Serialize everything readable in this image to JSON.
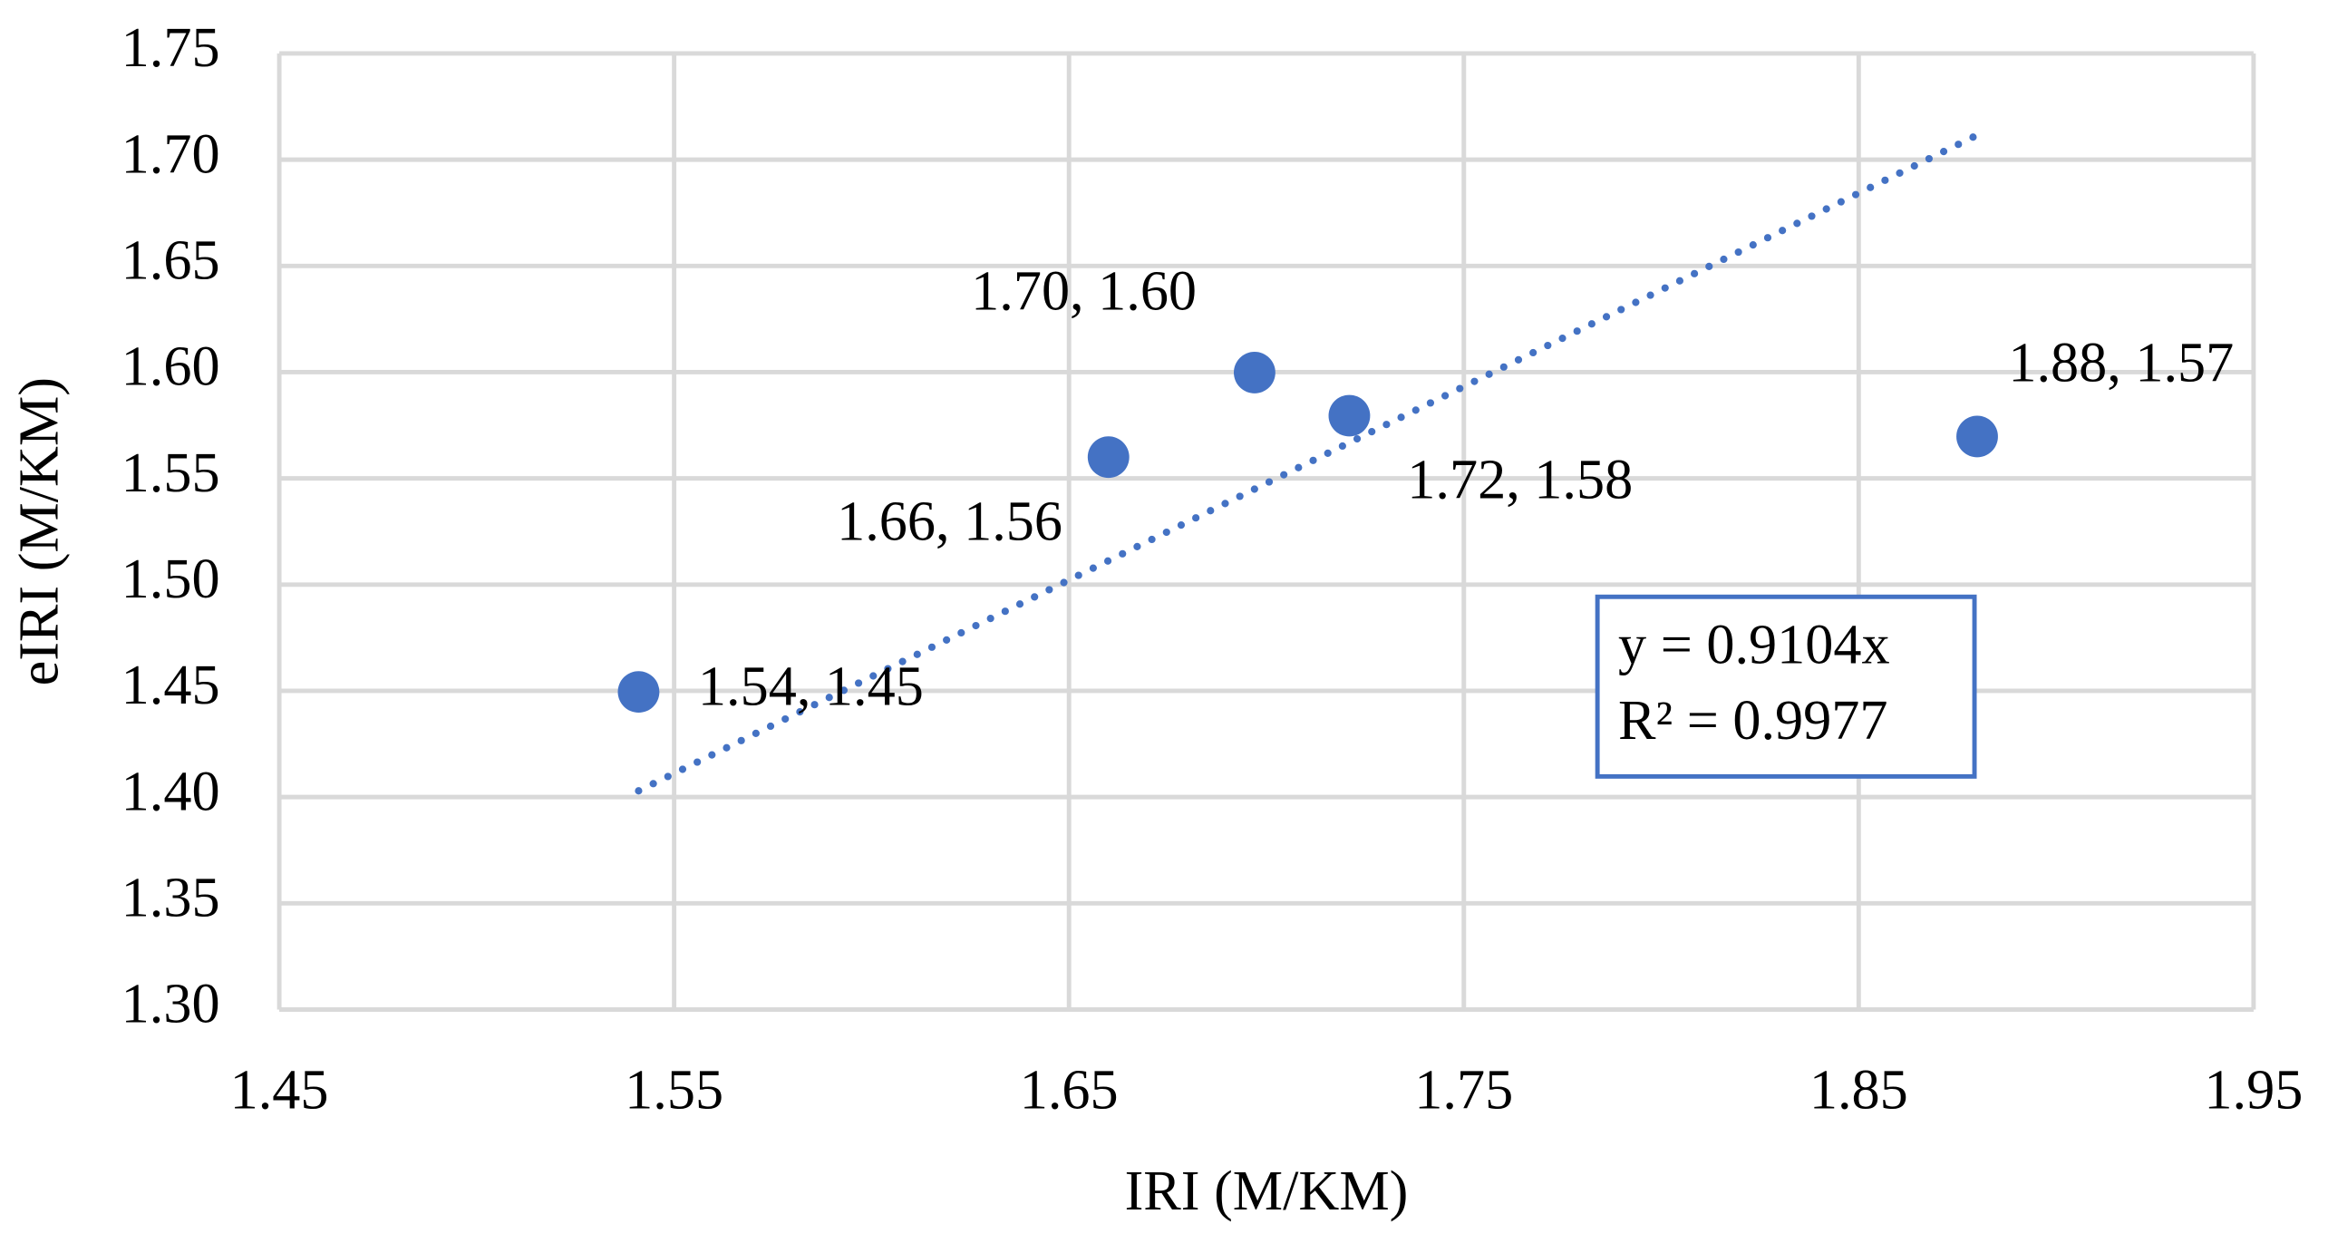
{
  "chart_data": {
    "type": "scatter",
    "x_label": "IRI (M/KM)",
    "y_label": "eIRI (M/KM)",
    "x": [
      1.541,
      1.66,
      1.697,
      1.721,
      1.88
    ],
    "series": [
      {
        "color": "#4472c4",
        "values": [
          1.4495,
          1.56,
          1.5998,
          1.5795,
          1.5697
        ],
        "value_labels": [
          "1.54, 1.45",
          "1.66, 1.56",
          "1.70, 1.60",
          "1.72, 1.58",
          "1.88, 1.57"
        ]
      }
    ],
    "trendline": {
      "slope": 0.9104,
      "equation": "y = 0.9104x",
      "r_squared": "R² = 0.9977"
    },
    "xlim": [
      1.45,
      1.95
    ],
    "xticks": [
      1.45,
      1.55,
      1.65,
      1.75,
      1.85,
      1.95
    ],
    "ylim": [
      1.3,
      1.75
    ],
    "yticks": [
      {
        "value": 1.3,
        "label": "1.30"
      },
      1.35,
      {
        "value": 1.4,
        "label": "1.40"
      },
      1.45,
      {
        "value": 1.5,
        "label": "1.50"
      },
      1.55,
      {
        "value": 1.6,
        "label": "1.60"
      },
      1.65,
      {
        "value": 1.7,
        "label": "1.70"
      },
      1.75
    ],
    "grid": true
  }
}
